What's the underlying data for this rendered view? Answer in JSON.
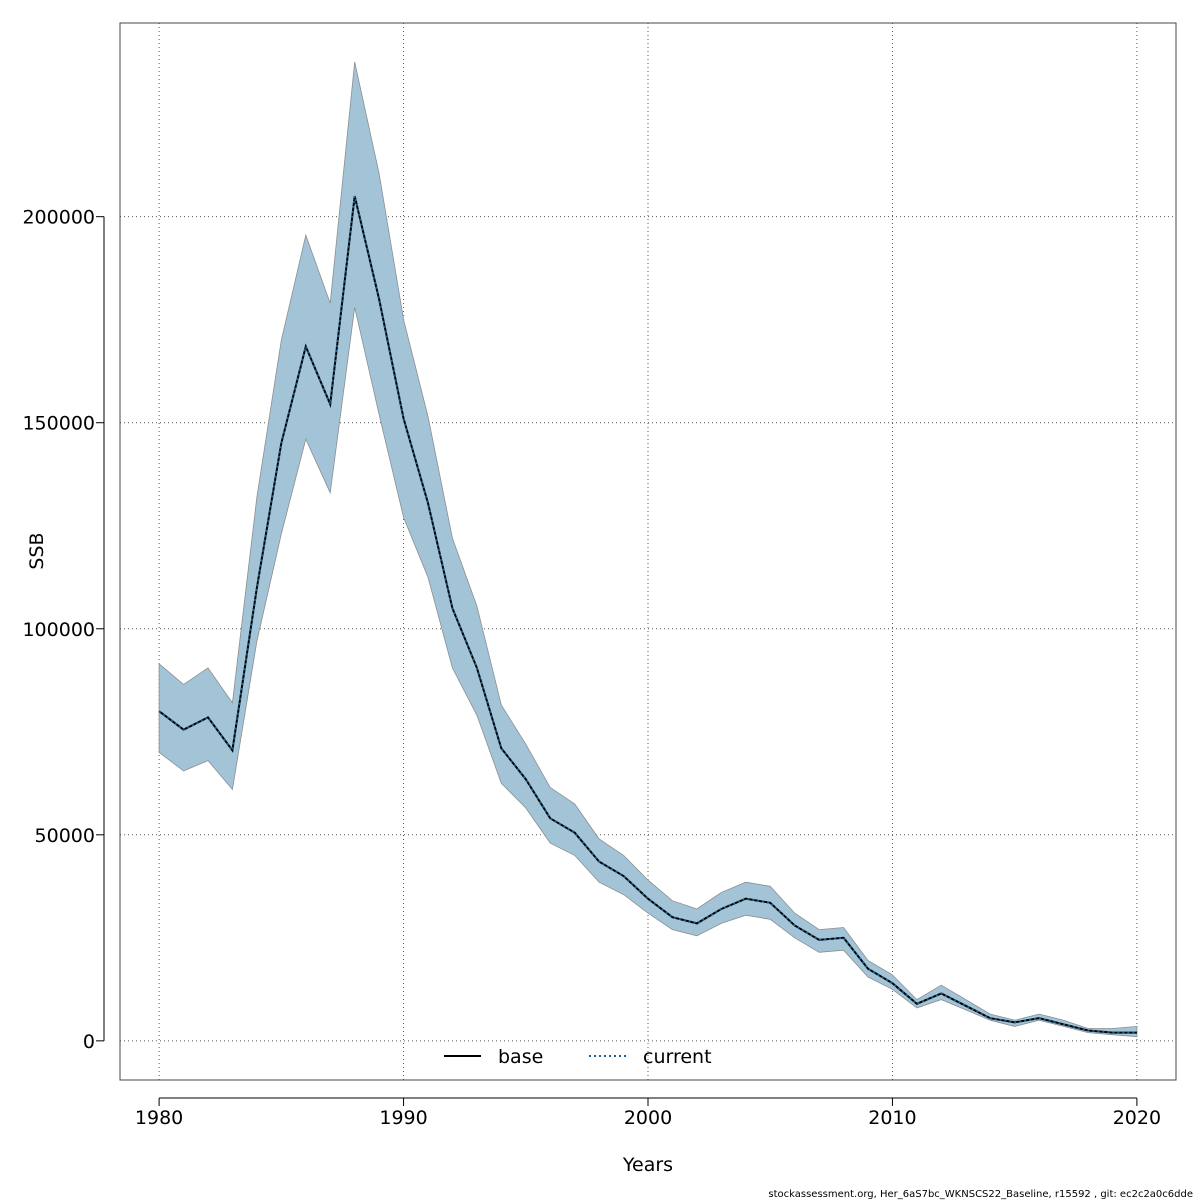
{
  "chart_data": {
    "type": "line",
    "xlabel": "Years",
    "ylabel": "SSB",
    "xlim": [
      1978.4,
      2021.6
    ],
    "ylim": [
      -9500,
      247000
    ],
    "x_ticks": [
      1980,
      1990,
      2000,
      2010,
      2020
    ],
    "y_ticks": [
      0,
      50000,
      100000,
      150000,
      200000
    ],
    "grid": true,
    "legend_position": "bottom-center",
    "colors": {
      "band_fill": "#a3c4d6",
      "band_edge": "#8a8f94",
      "base_line": "#000000",
      "current_line": "#1f5f8b"
    },
    "x": [
      1980,
      1981,
      1982,
      1983,
      1984,
      1985,
      1986,
      1987,
      1988,
      1989,
      1990,
      1991,
      1992,
      1993,
      1994,
      1995,
      1996,
      1997,
      1998,
      1999,
      2000,
      2001,
      2002,
      2003,
      2004,
      2005,
      2006,
      2007,
      2008,
      2009,
      2010,
      2011,
      2012,
      2013,
      2014,
      2015,
      2016,
      2017,
      2018,
      2019,
      2020
    ],
    "band": {
      "upper": [
        91500,
        86500,
        90500,
        82000,
        132000,
        170000,
        195500,
        179000,
        237500,
        210500,
        175000,
        151500,
        122000,
        105500,
        81500,
        72000,
        61500,
        57500,
        49000,
        45000,
        39000,
        34000,
        32000,
        36000,
        38500,
        37500,
        31000,
        27000,
        27500,
        19500,
        16000,
        10000,
        13500,
        10000,
        6500,
        5000,
        6500,
        5000,
        3000,
        3000,
        3500
      ],
      "lower": [
        70000,
        65500,
        68000,
        61000,
        97000,
        123000,
        146000,
        133000,
        178000,
        152000,
        127000,
        112500,
        90500,
        79000,
        62500,
        56500,
        48000,
        45000,
        38500,
        35500,
        31000,
        27000,
        25500,
        28500,
        30500,
        29500,
        25000,
        21500,
        22000,
        15500,
        12500,
        8000,
        10000,
        7500,
        5000,
        3500,
        5000,
        3500,
        2000,
        1500,
        1000
      ]
    },
    "series": [
      {
        "name": "base",
        "style": "solid",
        "values": [
          80000,
          75500,
          78500,
          70500,
          110000,
          145000,
          168500,
          154500,
          205000,
          180000,
          151000,
          130500,
          105000,
          90500,
          71000,
          63500,
          54000,
          50500,
          43500,
          40000,
          34500,
          30000,
          28500,
          32000,
          34500,
          33500,
          28000,
          24500,
          25000,
          17500,
          14000,
          9000,
          11500,
          8500,
          5500,
          4500,
          5500,
          4000,
          2500,
          2000,
          2000
        ]
      },
      {
        "name": "current",
        "style": "dotted",
        "values": [
          80000,
          75500,
          78500,
          70500,
          110000,
          145000,
          168500,
          154500,
          205000,
          180000,
          151000,
          130500,
          105000,
          90500,
          71000,
          63500,
          54000,
          50500,
          43500,
          40000,
          34500,
          30000,
          28500,
          32000,
          34500,
          33500,
          28000,
          24500,
          25000,
          17500,
          14000,
          9000,
          11500,
          8500,
          5500,
          4500,
          5500,
          4000,
          2500,
          2000,
          2000
        ]
      }
    ]
  },
  "footer": "stockassessment.org, Her_6aS7bc_WKNSCS22_Baseline, r15592 , git: ec2c2a0c6dde"
}
